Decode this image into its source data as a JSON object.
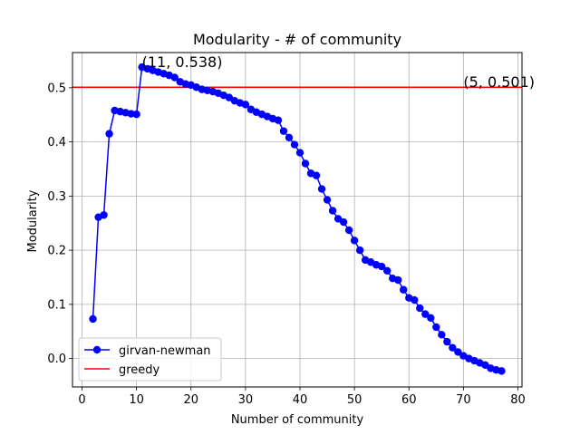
{
  "chart_data": {
    "type": "line",
    "title": "Modularity - # of community",
    "xlabel": "Number of community",
    "ylabel": "Modularity",
    "xlim": [
      -1.75,
      80.75
    ],
    "ylim": [
      -0.0525,
      0.565
    ],
    "xticks": [
      0,
      10,
      20,
      30,
      40,
      50,
      60,
      70,
      80
    ],
    "yticks": [
      0.0,
      0.1,
      0.2,
      0.3,
      0.4,
      0.5
    ],
    "xtick_labels": [
      "0",
      "10",
      "20",
      "30",
      "40",
      "50",
      "60",
      "70",
      "80"
    ],
    "ytick_labels": [
      "0.0",
      "0.1",
      "0.2",
      "0.3",
      "0.4",
      "0.5"
    ],
    "grid": true,
    "legend_position": "bottom-left",
    "series": [
      {
        "name": "girvan-newman",
        "color": "#0000ff",
        "marker": "circle",
        "x": [
          2,
          3,
          4,
          5,
          6,
          7,
          8,
          9,
          10,
          11,
          12,
          13,
          14,
          15,
          16,
          17,
          18,
          19,
          20,
          21,
          22,
          23,
          24,
          25,
          26,
          27,
          28,
          29,
          30,
          31,
          32,
          33,
          34,
          35,
          36,
          37,
          38,
          39,
          40,
          41,
          42,
          43,
          44,
          45,
          46,
          47,
          48,
          49,
          50,
          51,
          52,
          53,
          54,
          55,
          56,
          57,
          58,
          59,
          60,
          61,
          62,
          63,
          64,
          65,
          66,
          67,
          68,
          69,
          70,
          71,
          72,
          73,
          74,
          75,
          76,
          77
        ],
        "y": [
          0.073,
          0.261,
          0.265,
          0.415,
          0.458,
          0.456,
          0.454,
          0.452,
          0.451,
          0.538,
          0.535,
          0.532,
          0.529,
          0.526,
          0.523,
          0.519,
          0.511,
          0.507,
          0.505,
          0.501,
          0.497,
          0.495,
          0.493,
          0.49,
          0.486,
          0.482,
          0.476,
          0.472,
          0.469,
          0.46,
          0.455,
          0.451,
          0.447,
          0.443,
          0.44,
          0.42,
          0.408,
          0.395,
          0.38,
          0.36,
          0.342,
          0.338,
          0.313,
          0.293,
          0.273,
          0.258,
          0.252,
          0.237,
          0.218,
          0.2,
          0.182,
          0.178,
          0.173,
          0.17,
          0.162,
          0.148,
          0.145,
          0.127,
          0.112,
          0.108,
          0.093,
          0.082,
          0.075,
          0.058,
          0.044,
          0.031,
          0.02,
          0.012,
          0.005,
          0.0,
          -0.004,
          -0.008,
          -0.012,
          -0.018,
          -0.021,
          -0.023
        ]
      },
      {
        "name": "greedy",
        "color": "#ff0000",
        "marker": "none",
        "y_constant": 0.501
      }
    ],
    "annotations": [
      {
        "text": "(11, 0.538)",
        "x": 11,
        "y": 0.538
      },
      {
        "text": "(5, 0.501)",
        "x": 70,
        "y": 0.501
      }
    ]
  }
}
